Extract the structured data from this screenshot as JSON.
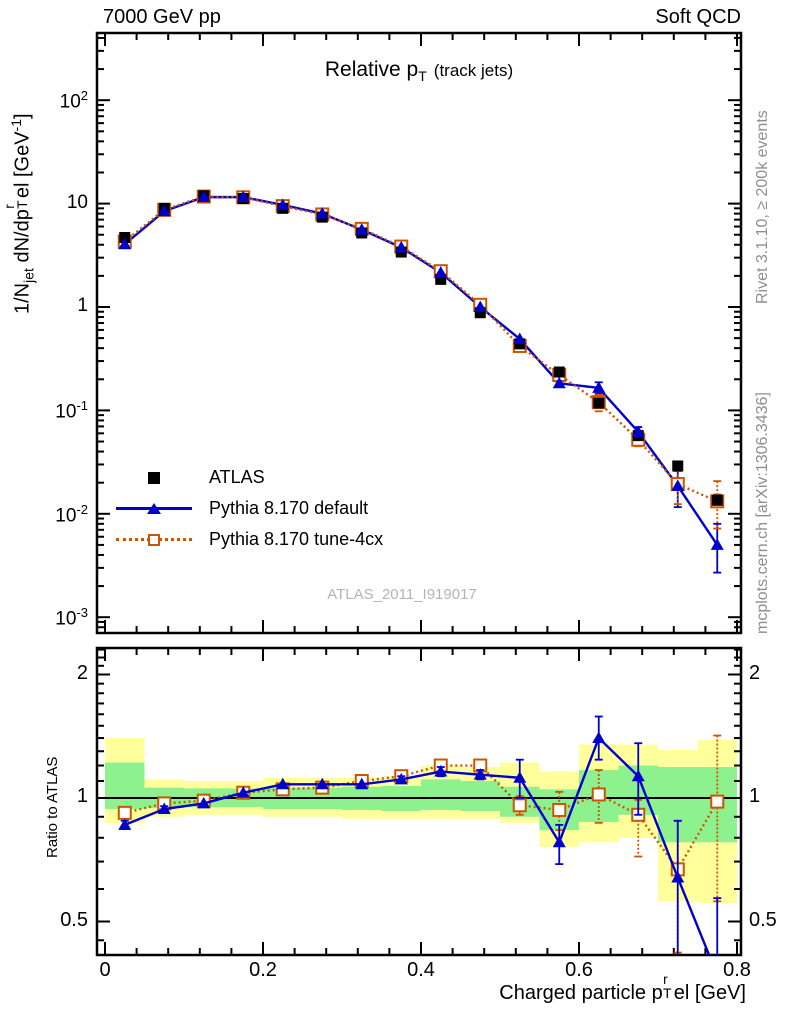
{
  "header": {
    "left": "7000 GeV pp",
    "right": "Soft QCD"
  },
  "side_notes": {
    "top": "Rivet 3.1.10, ≥ 200k events",
    "bottom": "mcplots.cern.ch [arXiv:1306.3436]"
  },
  "watermark": "ATLAS_2011_I919017",
  "main_panel": {
    "title": {
      "main": "Relative p",
      "sub": "T",
      "suffix": "(track jets)"
    },
    "y_title": {
      "p1": "1/N",
      "s1": "jet",
      "p2": " dN/dp",
      "sup": "r",
      "sub": "T",
      "p3": "el [GeV",
      "sup2": "-1",
      "p4": "]"
    }
  },
  "ratio_panel": {
    "y_title": "Ratio to ATLAS"
  },
  "x_title": {
    "p1": "Charged particle p",
    "sup": "r",
    "sub": "T",
    "p2": "el [GeV]"
  },
  "legend": {
    "items": [
      {
        "label": "ATLAS",
        "marker": "black-filled-square"
      },
      {
        "label": "Pythia 8.170 default",
        "marker": "blue-line-filled-triangle"
      },
      {
        "label": "Pythia 8.170 tune-4cx",
        "marker": "orange-dotted-line-open-square"
      }
    ]
  },
  "colors": {
    "default_blue": "#0000cc",
    "tune_orange": "#cc5500",
    "band_green": "#8df28d",
    "band_yellow": "#ffff9b",
    "data_black": "#000000",
    "gray_note": "#8f8f8f",
    "watermark_gray": "#b4b4b4"
  },
  "chart_data": {
    "type": "line",
    "title": "Relative pT (track jets)",
    "xlabel": "Charged particle pT^rel [GeV]",
    "ylabel": "1/N_jet dN/dpT^rel [GeV^-1]",
    "legend_position": "inside-left-bottom",
    "x": [
      0.025,
      0.075,
      0.125,
      0.175,
      0.225,
      0.275,
      0.325,
      0.375,
      0.425,
      0.475,
      0.525,
      0.575,
      0.625,
      0.675,
      0.725,
      0.775
    ],
    "bin_width": 0.05,
    "xlim": [
      -0.0101,
      0.805
    ],
    "xticks": [
      0,
      0.2,
      0.4,
      0.6,
      0.8
    ],
    "x_minor_step": 0.04,
    "main": {
      "yscale": "log",
      "ylim": [
        0.000703,
        447
      ],
      "yticks": [
        100,
        10,
        1,
        0.1,
        0.01,
        0.001
      ],
      "grid": false,
      "series": [
        {
          "name": "ATLAS",
          "role": "data",
          "color": "#000000",
          "marker": "filled-square",
          "line": "none",
          "y": [
            4.7,
            9.0,
            11.9,
            11.2,
            9.0,
            7.4,
            5.2,
            3.4,
            1.85,
            0.88,
            0.44,
            0.235,
            0.118,
            0.057,
            0.029,
            0.0135
          ],
          "yerr_lo": [
            0.15,
            0.2,
            0.25,
            0.25,
            0.2,
            0.15,
            0.12,
            0.08,
            0.05,
            0.025,
            0.013,
            0.008,
            0.005,
            0.003,
            0.003,
            0.0018
          ],
          "yerr_hi": [
            0.15,
            0.2,
            0.25,
            0.25,
            0.2,
            0.15,
            0.12,
            0.08,
            0.05,
            0.025,
            0.013,
            0.008,
            0.005,
            0.003,
            0.003,
            0.0018
          ]
        },
        {
          "name": "Pythia 8.170 default",
          "role": "mc",
          "color": "#0000cc",
          "marker": "filled-triangle",
          "line": "solid",
          "y": [
            4.05,
            8.45,
            11.55,
            11.55,
            9.7,
            8.0,
            5.6,
            3.77,
            2.15,
            1.0,
            0.49,
            0.183,
            0.165,
            0.062,
            0.0186,
            0.005
          ],
          "yerr_lo": [
            0.08,
            0.12,
            0.15,
            0.15,
            0.13,
            0.11,
            0.09,
            0.07,
            0.05,
            0.03,
            0.025,
            0.014,
            0.02,
            0.007,
            0.007,
            0.0023
          ],
          "yerr_hi": [
            0.08,
            0.12,
            0.15,
            0.15,
            0.13,
            0.11,
            0.09,
            0.07,
            0.05,
            0.03,
            0.025,
            0.014,
            0.022,
            0.007,
            0.008,
            0.003
          ]
        },
        {
          "name": "Pythia 8.170 tune-4cx",
          "role": "mc",
          "color": "#cc5500",
          "marker": "open-square",
          "line": "dotted",
          "y": [
            4.3,
            8.7,
            11.7,
            11.5,
            9.45,
            7.85,
            5.7,
            3.84,
            2.22,
            1.05,
            0.42,
            0.22,
            0.12,
            0.052,
            0.0194,
            0.0132
          ],
          "yerr_lo": [
            0.08,
            0.12,
            0.15,
            0.15,
            0.13,
            0.11,
            0.09,
            0.07,
            0.05,
            0.03,
            0.022,
            0.03,
            0.022,
            0.007,
            0.007,
            0.006
          ],
          "yerr_hi": [
            0.08,
            0.12,
            0.15,
            0.15,
            0.13,
            0.11,
            0.09,
            0.07,
            0.05,
            0.03,
            0.022,
            0.03,
            0.022,
            0.007,
            0.007,
            0.0075
          ]
        }
      ]
    },
    "ratio": {
      "label": "Ratio to ATLAS",
      "yscale": "log",
      "ylim": [
        0.414,
        2.32
      ],
      "yticks": [
        0.5,
        1,
        2
      ],
      "reference_line": 1,
      "band_green": [
        [
          0.94,
          1.22
        ],
        [
          0.945,
          1.06
        ],
        [
          0.95,
          1.055
        ],
        [
          0.95,
          1.055
        ],
        [
          0.94,
          1.06
        ],
        [
          0.94,
          1.06
        ],
        [
          0.935,
          1.065
        ],
        [
          0.93,
          1.07
        ],
        [
          0.935,
          1.11
        ],
        [
          0.93,
          1.1
        ],
        [
          0.9,
          1.065
        ],
        [
          0.835,
          1.05
        ],
        [
          0.874,
          1.17
        ],
        [
          0.91,
          1.2
        ],
        [
          0.78,
          1.19
        ],
        [
          0.78,
          1.19
        ]
      ],
      "band_yellow": [
        [
          0.87,
          1.4
        ],
        [
          0.9,
          1.11
        ],
        [
          0.91,
          1.1
        ],
        [
          0.91,
          1.1
        ],
        [
          0.9,
          1.12
        ],
        [
          0.9,
          1.12
        ],
        [
          0.89,
          1.12
        ],
        [
          0.89,
          1.13
        ],
        [
          0.89,
          1.2
        ],
        [
          0.89,
          1.19
        ],
        [
          0.87,
          1.22
        ],
        [
          0.76,
          1.16
        ],
        [
          0.78,
          1.35
        ],
        [
          0.8,
          1.35
        ],
        [
          0.56,
          1.31
        ],
        [
          0.555,
          1.385
        ]
      ],
      "series": [
        {
          "name": "Pythia 8.170 default",
          "color": "#0000cc",
          "marker": "filled-triangle",
          "line": "solid",
          "y": [
            0.86,
            0.94,
            0.97,
            1.03,
            1.08,
            1.08,
            1.08,
            1.11,
            1.16,
            1.14,
            1.12,
            0.78,
            1.4,
            1.13,
            0.64,
            0.37
          ],
          "yerr_lo": [
            0.02,
            0.015,
            0.012,
            0.012,
            0.015,
            0.015,
            0.015,
            0.02,
            0.03,
            0.03,
            0.12,
            0.09,
            0.16,
            0.22,
            0.23,
            0.2
          ],
          "yerr_hi": [
            0.02,
            0.015,
            0.012,
            0.012,
            0.015,
            0.015,
            0.015,
            0.02,
            0.03,
            0.03,
            0.12,
            0.08,
            0.18,
            0.23,
            0.24,
            0.2
          ]
        },
        {
          "name": "Pythia 8.170 tune-4cx",
          "color": "#cc5500",
          "marker": "open-square",
          "line": "dotted",
          "y": [
            0.92,
            0.97,
            0.985,
            1.03,
            1.05,
            1.06,
            1.1,
            1.13,
            1.2,
            1.2,
            0.96,
            0.935,
            1.02,
            0.91,
            0.67,
            0.98
          ],
          "yerr_lo": [
            0.02,
            0.015,
            0.012,
            0.012,
            0.015,
            0.015,
            0.015,
            0.02,
            0.03,
            0.04,
            0.05,
            0.1,
            0.15,
            0.19,
            0.25,
            0.42
          ],
          "yerr_hi": [
            0.02,
            0.015,
            0.012,
            0.012,
            0.015,
            0.015,
            0.015,
            0.02,
            0.03,
            0.04,
            0.05,
            0.1,
            0.15,
            0.08,
            0.21,
            0.44
          ]
        }
      ]
    }
  }
}
